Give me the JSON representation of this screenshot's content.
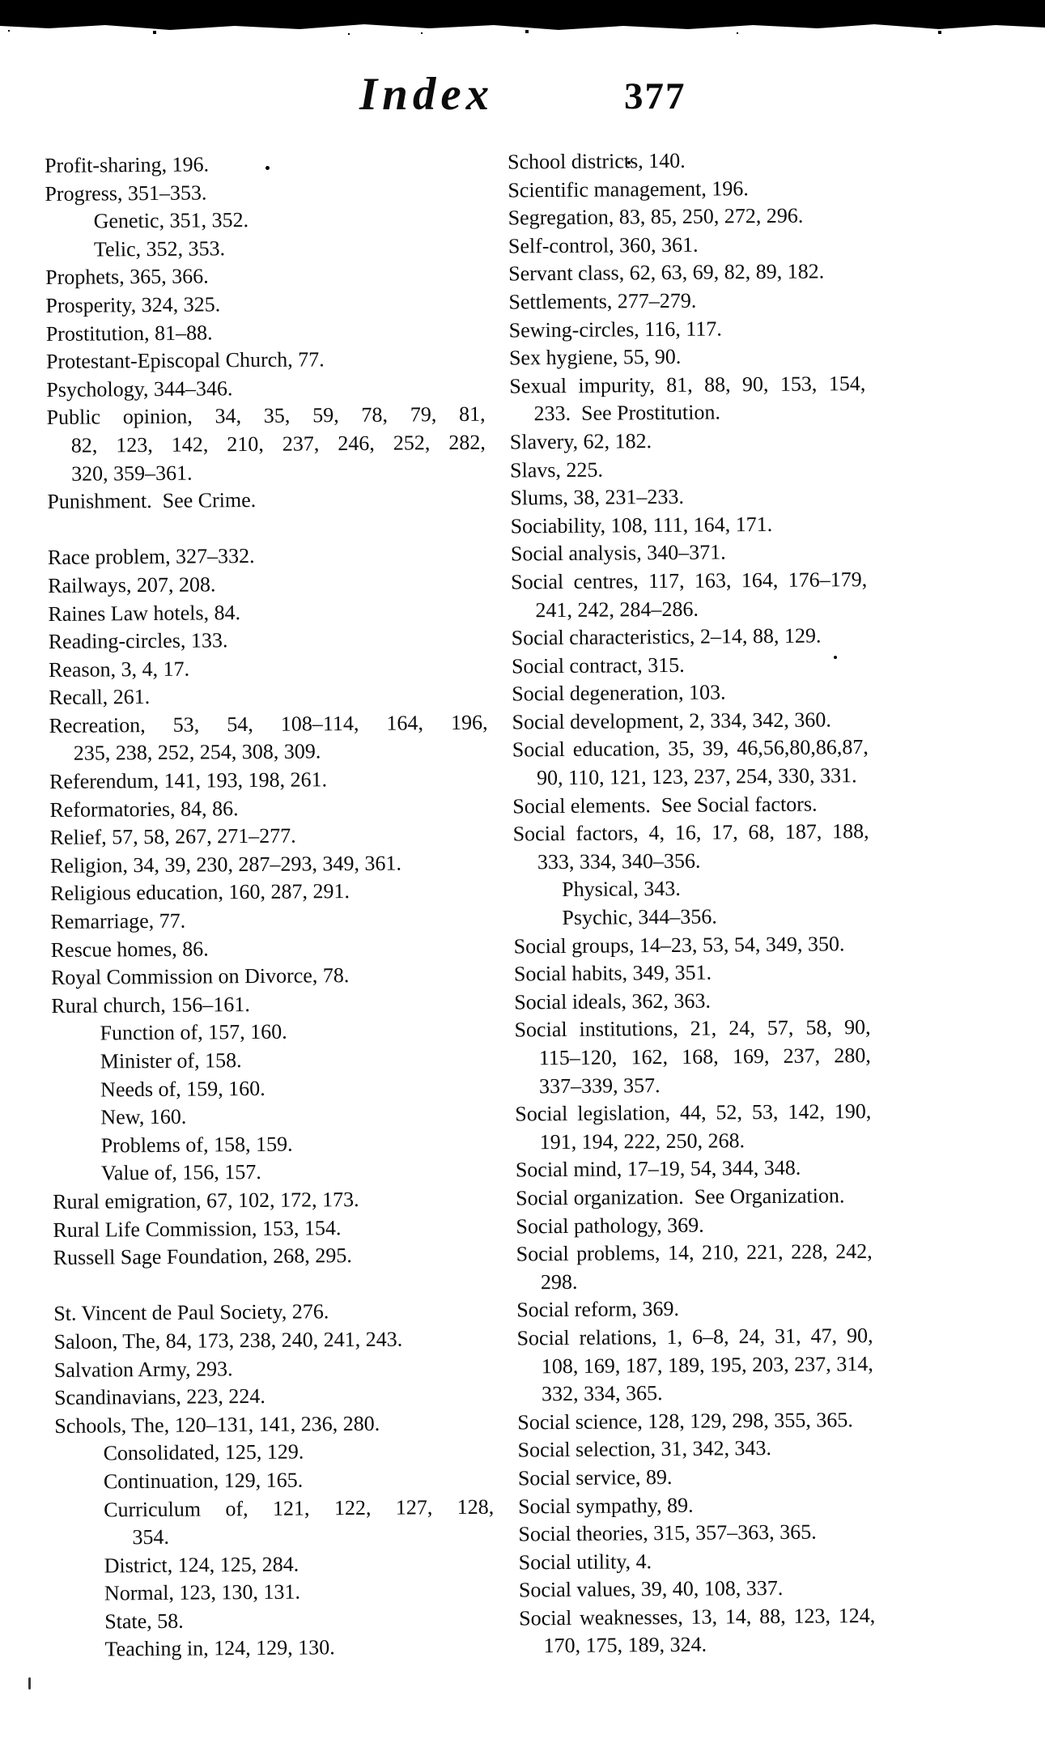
{
  "page": {
    "header": {
      "title": "Index",
      "page_number": "377"
    }
  },
  "left_column": [
    {
      "t": "Profit-sharing, 196.",
      "i": 0
    },
    {
      "t": "Progress, 351–353.",
      "i": 0
    },
    {
      "t": "Genetic, 351, 352.",
      "i": 2
    },
    {
      "t": "Telic, 352, 353.",
      "i": 2
    },
    {
      "t": "Prophets, 365, 366.",
      "i": 0
    },
    {
      "t": "Prosperity, 324, 325.",
      "i": 0
    },
    {
      "t": "Prostitution, 81–88.",
      "i": 0
    },
    {
      "t": "Protestant-Episcopal Church, 77.",
      "i": 0
    },
    {
      "t": "Psychology, 344–346.",
      "i": 0
    },
    {
      "t": "Public opinion, 34, 35, 59, 78, 79, 81,",
      "i": 0,
      "j": true
    },
    {
      "t": "82, 123, 142, 210, 237, 246, 252, 282,",
      "i": 1,
      "j": true
    },
    {
      "t": "320, 359–361.",
      "i": 1
    },
    {
      "t": "Punishment. See Crime.",
      "i": 0
    },
    {
      "t": "Race problem, 327–332.",
      "i": 0,
      "gap": true
    },
    {
      "t": "Railways, 207, 208.",
      "i": 0
    },
    {
      "t": "Raines Law hotels, 84.",
      "i": 0
    },
    {
      "t": "Reading-circles, 133.",
      "i": 0
    },
    {
      "t": "Reason, 3, 4, 17.",
      "i": 0
    },
    {
      "t": "Recall, 261.",
      "i": 0
    },
    {
      "t": "Recreation, 53, 54, 108–114, 164, 196,",
      "i": 0,
      "j": true
    },
    {
      "t": "235, 238, 252, 254, 308, 309.",
      "i": 1
    },
    {
      "t": "Referendum, 141, 193, 198, 261.",
      "i": 0
    },
    {
      "t": "Reformatories, 84, 86.",
      "i": 0
    },
    {
      "t": "Relief, 57, 58, 267, 271–277.",
      "i": 0
    },
    {
      "t": "Religion, 34, 39, 230, 287–293, 349, 361.",
      "i": 0
    },
    {
      "t": "Religious education, 160, 287, 291.",
      "i": 0
    },
    {
      "t": "Remarriage, 77.",
      "i": 0
    },
    {
      "t": "Rescue homes, 86.",
      "i": 0
    },
    {
      "t": "Royal Commission on Divorce, 78.",
      "i": 0
    },
    {
      "t": "Rural church, 156–161.",
      "i": 0
    },
    {
      "t": "Function of, 157, 160.",
      "i": 2
    },
    {
      "t": "Minister of, 158.",
      "i": 2
    },
    {
      "t": "Needs of, 159, 160.",
      "i": 2
    },
    {
      "t": "New, 160.",
      "i": 2
    },
    {
      "t": "Problems of, 158, 159.",
      "i": 2
    },
    {
      "t": "Value of, 156, 157.",
      "i": 2
    },
    {
      "t": "Rural emigration, 67, 102, 172, 173.",
      "i": 0
    },
    {
      "t": "Rural Life Commission, 153, 154.",
      "i": 0
    },
    {
      "t": "Russell Sage Foundation, 268, 295.",
      "i": 0
    },
    {
      "t": "St. Vincent de Paul Society, 276.",
      "i": 0,
      "gap": true
    },
    {
      "t": "Saloon, The, 84, 173, 238, 240, 241, 243.",
      "i": 0
    },
    {
      "t": "Salvation Army, 293.",
      "i": 0
    },
    {
      "t": "Scandinavians, 223, 224.",
      "i": 0
    },
    {
      "t": "Schools, The, 120–131, 141, 236, 280.",
      "i": 0
    },
    {
      "t": "Consolidated, 125, 129.",
      "i": 2
    },
    {
      "t": "Continuation, 129, 165.",
      "i": 2
    },
    {
      "t": "Curriculum of, 121, 122, 127, 128,",
      "i": 2,
      "j": true
    },
    {
      "t": "354.",
      "i": 3
    },
    {
      "t": "District, 124, 125, 284.",
      "i": 2
    },
    {
      "t": "Normal, 123, 130, 131.",
      "i": 2
    },
    {
      "t": "State, 58.",
      "i": 2
    },
    {
      "t": "Teaching in, 124, 129, 130.",
      "i": 2
    }
  ],
  "right_column": [
    {
      "t": "School districts, 140.",
      "i": 0
    },
    {
      "t": "Scientific management, 196.",
      "i": 0
    },
    {
      "t": "Segregation, 83, 85, 250, 272, 296.",
      "i": 0
    },
    {
      "t": "Self-control, 360, 361.",
      "i": 0
    },
    {
      "t": "Servant class, 62, 63, 69, 82, 89, 182.",
      "i": 0
    },
    {
      "t": "Settlements, 277–279.",
      "i": 0
    },
    {
      "t": "Sewing-circles, 116, 117.",
      "i": 0
    },
    {
      "t": "Sex hygiene, 55, 90.",
      "i": 0
    },
    {
      "t": "Sexual impurity, 81, 88, 90, 153, 154,",
      "i": 0,
      "j": true
    },
    {
      "t": "233. See Prostitution.",
      "i": 1
    },
    {
      "t": "Slavery, 62, 182.",
      "i": 0
    },
    {
      "t": "Slavs, 225.",
      "i": 0
    },
    {
      "t": "Slums, 38, 231–233.",
      "i": 0
    },
    {
      "t": "Sociability, 108, 111, 164, 171.",
      "i": 0
    },
    {
      "t": "Social analysis, 340–371.",
      "i": 0
    },
    {
      "t": "Social centres, 117, 163, 164, 176–179,",
      "i": 0,
      "j": true
    },
    {
      "t": "241, 242, 284–286.",
      "i": 1
    },
    {
      "t": "Social characteristics, 2–14, 88, 129.",
      "i": 0
    },
    {
      "t": "Social contract, 315.",
      "i": 0
    },
    {
      "t": "Social degeneration, 103.",
      "i": 0
    },
    {
      "t": "Social development, 2, 334, 342, 360.",
      "i": 0
    },
    {
      "t": "Social education, 35, 39, 46,56,80,86,87,",
      "i": 0,
      "j": true
    },
    {
      "t": "90, 110, 121, 123, 237, 254, 330, 331.",
      "i": 1
    },
    {
      "t": "Social elements. See Social factors.",
      "i": 0
    },
    {
      "t": "Social factors, 4, 16, 17, 68, 187, 188,",
      "i": 0,
      "j": true
    },
    {
      "t": "333, 334, 340–356.",
      "i": 1
    },
    {
      "t": "Physical, 343.",
      "i": 2
    },
    {
      "t": "Psychic, 344–356.",
      "i": 2
    },
    {
      "t": "Social groups, 14–23, 53, 54, 349, 350.",
      "i": 0
    },
    {
      "t": "Social habits, 349, 351.",
      "i": 0
    },
    {
      "t": "Social ideals, 362, 363.",
      "i": 0
    },
    {
      "t": "Social institutions, 21, 24, 57, 58, 90,",
      "i": 0,
      "j": true
    },
    {
      "t": "115–120, 162, 168, 169, 237, 280,",
      "i": 1,
      "j": true
    },
    {
      "t": "337–339, 357.",
      "i": 1
    },
    {
      "t": "Social legislation, 44, 52, 53, 142, 190,",
      "i": 0,
      "j": true
    },
    {
      "t": "191, 194, 222, 250, 268.",
      "i": 1
    },
    {
      "t": "Social mind, 17–19, 54, 344, 348.",
      "i": 0
    },
    {
      "t": "Social organization. See Organization.",
      "i": 0
    },
    {
      "t": "Social pathology, 369.",
      "i": 0
    },
    {
      "t": "Social problems, 14, 210, 221, 228, 242,",
      "i": 0,
      "j": true
    },
    {
      "t": "298.",
      "i": 1
    },
    {
      "t": "Social reform, 369.",
      "i": 0
    },
    {
      "t": "Social relations, 1, 6–8, 24, 31, 47, 90,",
      "i": 0,
      "j": true
    },
    {
      "t": "108, 169, 187, 189, 195, 203, 237, 314,",
      "i": 1,
      "j": true
    },
    {
      "t": "332, 334, 365.",
      "i": 1
    },
    {
      "t": "Social science, 128, 129, 298, 355, 365.",
      "i": 0
    },
    {
      "t": "Social selection, 31, 342, 343.",
      "i": 0
    },
    {
      "t": "Social service, 89.",
      "i": 0
    },
    {
      "t": "Social sympathy, 89.",
      "i": 0
    },
    {
      "t": "Social theories, 315, 357–363, 365.",
      "i": 0
    },
    {
      "t": "Social utility, 4.",
      "i": 0
    },
    {
      "t": "Social values, 39, 40, 108, 337.",
      "i": 0
    },
    {
      "t": "Social weaknesses, 13, 14, 88, 123, 124,",
      "i": 0,
      "j": true
    },
    {
      "t": "170, 175, 189, 324.",
      "i": 1
    }
  ]
}
